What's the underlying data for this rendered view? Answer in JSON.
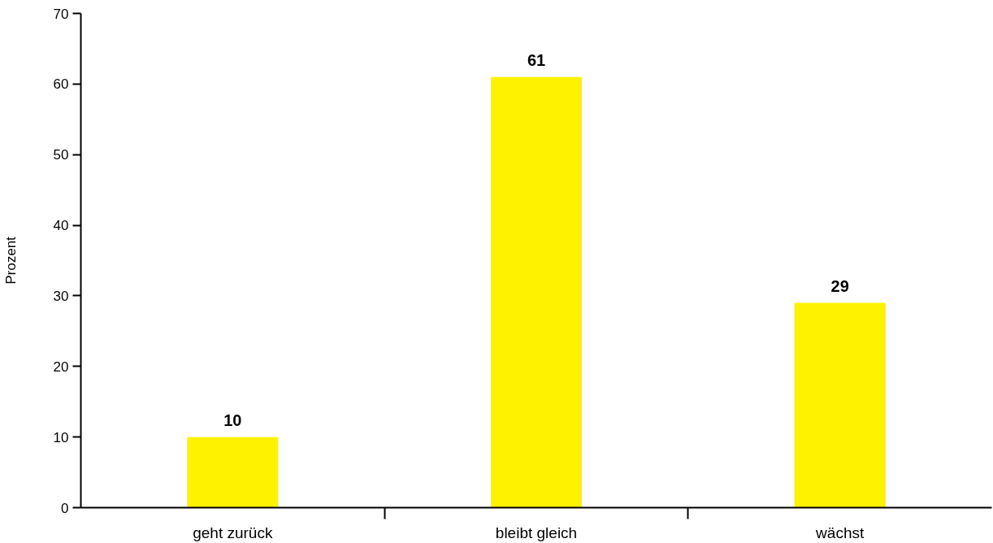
{
  "chart_data": {
    "type": "bar",
    "ylabel": "Prozent",
    "categories": [
      "geht zurück",
      "bleibt gleich",
      "wächst"
    ],
    "values": [
      10,
      61,
      29
    ],
    "color": "#fff200",
    "ylim": [
      0,
      70
    ],
    "yticks": [
      0,
      10,
      20,
      30,
      40,
      50,
      60,
      70
    ],
    "data_labels": true,
    "grid": false
  }
}
